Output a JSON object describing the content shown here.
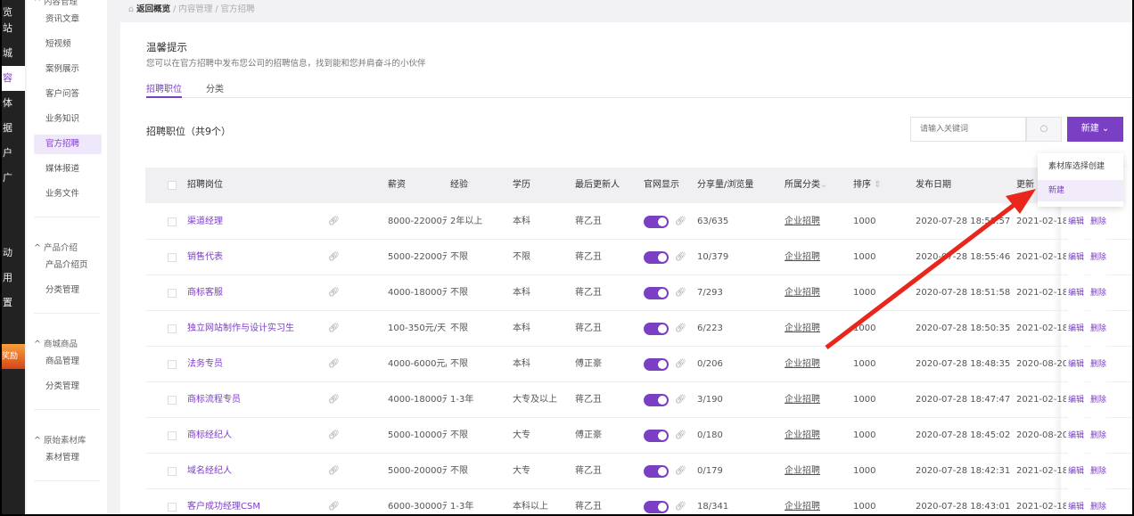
{
  "dark_nav": [
    "览",
    "站",
    "城",
    "容",
    "体",
    "据",
    "户",
    "广",
    "动",
    "用",
    "置"
  ],
  "reward_badge": "奖励",
  "sidebar": {
    "groups": [
      {
        "title": "^ 内容管理",
        "items": [
          "资讯文章",
          "短视频",
          "案例展示",
          "客户问答",
          "业务知识",
          "官方招聘",
          "媒体报道",
          "业务文件"
        ]
      },
      {
        "title": "^ 产品介绍",
        "items": [
          "产品介绍页",
          "分类管理"
        ]
      },
      {
        "title": "^ 商城商品",
        "items": [
          "商品管理",
          "分类管理"
        ]
      },
      {
        "title": "^ 原始素材库",
        "items": [
          "素材管理"
        ]
      }
    ],
    "active_item": "官方招聘"
  },
  "breadcrumb": {
    "home": "返回概览",
    "sep": "/",
    "items": [
      "内容管理",
      "官方招聘"
    ]
  },
  "tip": {
    "title": "温馨提示",
    "text": "您可以在官方招聘中发布您公司的招聘信息，找到能和您并肩奋斗的小伙伴"
  },
  "tabs": [
    "招聘职位",
    "分类"
  ],
  "list_title": "招聘职位（共9个）",
  "search": {
    "placeholder": "请输入关键词"
  },
  "new_button": "新建",
  "dropdown": [
    "素材库选择创建",
    "新建"
  ],
  "columns": [
    "招聘岗位",
    "薪资",
    "经验",
    "学历",
    "最后更新人",
    "官网显示",
    "分享量/浏览量",
    "所属分类",
    "排序",
    "发布日期",
    "更新",
    "编辑",
    "删除"
  ],
  "rows": [
    [
      "渠道经理",
      "8000-22000元",
      "2年以上",
      "本科",
      "蒋乙丑",
      "63/635",
      "企业招聘",
      "1000",
      "2020-07-28 18:58:57",
      "2021-02-18"
    ],
    [
      "销售代表",
      "5000-22000元",
      "不限",
      "不限",
      "蒋乙丑",
      "10/379",
      "企业招聘",
      "1000",
      "2020-07-28 18:55:46",
      "2021-02-18"
    ],
    [
      "商标客服",
      "4000-18000元",
      "不限",
      "本科",
      "蒋乙丑",
      "7/293",
      "企业招聘",
      "1000",
      "2020-07-28 18:51:58",
      "2021-02-18"
    ],
    [
      "独立网站制作与设计实习生",
      "100-350元/天",
      "不限",
      "本科",
      "蒋乙丑",
      "6/223",
      "企业招聘",
      "1000",
      "2020-07-28 18:50:35",
      "2021-02-18"
    ],
    [
      "法务专员",
      "4000-6000元/月",
      "不限",
      "本科",
      "傅正豪",
      "0/206",
      "企业招聘",
      "1000",
      "2020-07-28 18:48:35",
      "2020-08-20"
    ],
    [
      "商标流程专员",
      "4000-18000元",
      "1-3年",
      "大专及以上",
      "蒋乙丑",
      "3/190",
      "企业招聘",
      "1000",
      "2020-07-28 18:47:47",
      "2021-02-18"
    ],
    [
      "商标经纪人",
      "5000-10000元",
      "不限",
      "大专",
      "傅正豪",
      "0/180",
      "企业招聘",
      "1000",
      "2020-07-28 18:45:02",
      "2020-08-20"
    ],
    [
      "域名经纪人",
      "5000-20000元",
      "不限",
      "大专",
      "蒋乙丑",
      "0/179",
      "企业招聘",
      "1000",
      "2020-07-28 18:42:31",
      "2021-02-18"
    ],
    [
      "客户成功经理CSM",
      "6000-30000元",
      "1-3年",
      "本科以上",
      "蒋乙丑",
      "18/341",
      "企业招聘",
      "1000",
      "2020-07-28 18:43:01",
      "2021-02-18"
    ]
  ],
  "row_toggle_on": [
    true,
    true,
    true,
    true,
    true,
    true,
    true,
    true,
    true
  ],
  "colors": {
    "accent": "#7b3fc4",
    "arrow": "#e8261c"
  }
}
